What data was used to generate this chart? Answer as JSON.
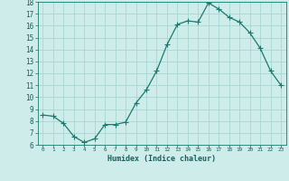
{
  "x": [
    0,
    1,
    2,
    3,
    4,
    5,
    6,
    7,
    8,
    9,
    10,
    11,
    12,
    13,
    14,
    15,
    16,
    17,
    18,
    19,
    20,
    21,
    22,
    23
  ],
  "y": [
    8.5,
    8.4,
    7.8,
    6.7,
    6.2,
    6.5,
    7.7,
    7.7,
    7.9,
    9.5,
    10.6,
    12.2,
    14.4,
    16.1,
    16.4,
    16.3,
    17.9,
    17.4,
    16.7,
    16.3,
    15.4,
    14.1,
    12.2,
    11.0
  ],
  "xlabel": "Humidex (Indice chaleur)",
  "ylim": [
    6,
    18
  ],
  "xlim_min": -0.5,
  "xlim_max": 23.5,
  "yticks": [
    6,
    7,
    8,
    9,
    10,
    11,
    12,
    13,
    14,
    15,
    16,
    17,
    18
  ],
  "xticks": [
    0,
    1,
    2,
    3,
    4,
    5,
    6,
    7,
    8,
    9,
    10,
    11,
    12,
    13,
    14,
    15,
    16,
    17,
    18,
    19,
    20,
    21,
    22,
    23
  ],
  "line_color": "#1a7a6e",
  "marker_color": "#1a7a6e",
  "bg_color": "#ceecea",
  "grid_color": "#9ed4ce",
  "tick_label_color": "#1a5f5a",
  "xlabel_color": "#1a5f5a",
  "ytick_fontsize": 5.5,
  "xtick_fontsize": 4.3,
  "xlabel_fontsize": 6.0,
  "linewidth": 0.9,
  "markersize": 2.2
}
